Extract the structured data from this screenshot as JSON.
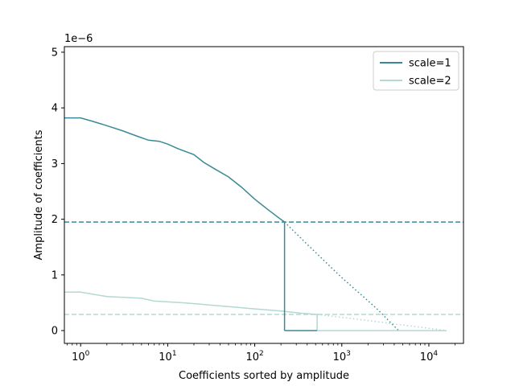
{
  "chart_data": {
    "type": "line",
    "title": "",
    "xlabel": "Coefficients sorted by amplitude",
    "ylabel": "Amplitude of coefficients",
    "y_offset_label": "1e−6",
    "xscale": "log",
    "xlim": [
      0.65,
      25000
    ],
    "ylim": [
      -0.23,
      5.1
    ],
    "y_ticks": [
      0,
      1,
      2,
      3,
      4,
      5
    ],
    "x_ticks": [
      {
        "value": 1,
        "base": "10",
        "exp": "0"
      },
      {
        "value": 10,
        "base": "10",
        "exp": "1"
      },
      {
        "value": 100,
        "base": "10",
        "exp": "2"
      },
      {
        "value": 1000,
        "base": "10",
        "exp": "3"
      },
      {
        "value": 10000,
        "base": "10",
        "exp": "4"
      }
    ],
    "grid": false,
    "legend_position": "top-right",
    "series": [
      {
        "name": "scale=1",
        "color": "#3a8a96",
        "points": [
          [
            0.65,
            3.82
          ],
          [
            1,
            3.82
          ],
          [
            1.3,
            3.77
          ],
          [
            2,
            3.68
          ],
          [
            3,
            3.59
          ],
          [
            4.5,
            3.49
          ],
          [
            6,
            3.42
          ],
          [
            8,
            3.4
          ],
          [
            10,
            3.35
          ],
          [
            13,
            3.27
          ],
          [
            20,
            3.16
          ],
          [
            26,
            3.02
          ],
          [
            35,
            2.9
          ],
          [
            50,
            2.76
          ],
          [
            70,
            2.58
          ],
          [
            100,
            2.36
          ],
          [
            140,
            2.18
          ],
          [
            180,
            2.05
          ],
          [
            220,
            1.95
          ]
        ],
        "tail": [
          [
            220,
            1.95
          ],
          [
            400,
            1.55
          ],
          [
            1000,
            0.95
          ],
          [
            2500,
            0.4
          ],
          [
            4500,
            0.0
          ]
        ],
        "drop_at": 220,
        "threshold": 1.95
      },
      {
        "name": "scale=2",
        "color": "#b4d8d3",
        "points": [
          [
            0.65,
            0.69
          ],
          [
            1,
            0.69
          ],
          [
            2,
            0.61
          ],
          [
            5,
            0.58
          ],
          [
            7,
            0.53
          ],
          [
            15,
            0.5
          ],
          [
            30,
            0.46
          ],
          [
            60,
            0.42
          ],
          [
            100,
            0.39
          ],
          [
            200,
            0.35
          ],
          [
            350,
            0.31
          ],
          [
            520,
            0.29
          ]
        ],
        "tail": [
          [
            520,
            0.29
          ],
          [
            2000,
            0.18
          ],
          [
            8000,
            0.06
          ],
          [
            16000,
            0.0
          ]
        ],
        "drop_at": 520,
        "threshold": 0.29
      }
    ],
    "zero_segment": {
      "from": 220,
      "to": 16000
    }
  }
}
